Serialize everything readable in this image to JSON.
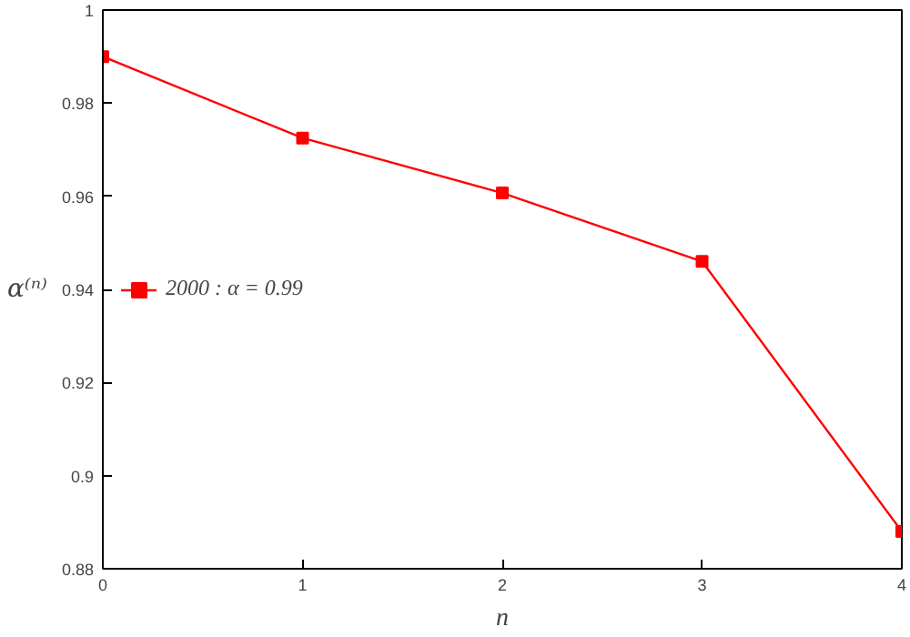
{
  "chart_data": {
    "type": "line",
    "xlabel": "n",
    "ylabel": "α⁽ⁿ⁾",
    "x": [
      0,
      1,
      2,
      3,
      4
    ],
    "series": [
      {
        "name": "2000 : α = 0.99",
        "color": "#ff0000",
        "values": [
          0.99,
          0.9725,
          0.9607,
          0.946,
          0.888
        ]
      }
    ],
    "xlim": [
      0,
      4
    ],
    "xticks": [
      0,
      1,
      2,
      3,
      4
    ],
    "ylim": [
      0.88,
      1
    ],
    "yticks": [
      0.88,
      0.9,
      0.92,
      0.94,
      0.96,
      0.98,
      1
    ],
    "grid": false,
    "legend": "left",
    "marker": "square",
    "line_style": "solid"
  }
}
